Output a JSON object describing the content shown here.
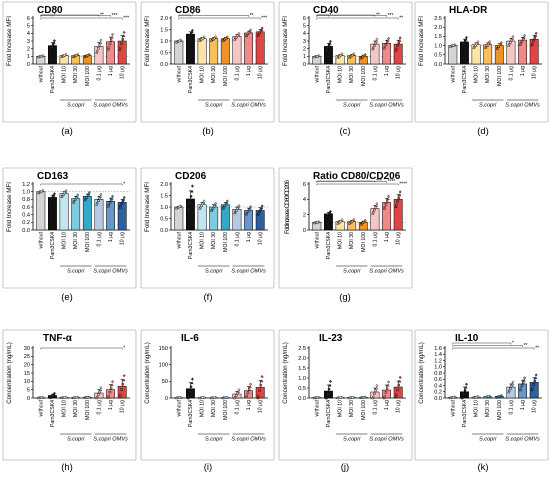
{
  "colors": {
    "without": "#d4d4d4",
    "pam": "#111111",
    "moi10": "#fce3a6",
    "moi30": "#f8bf5a",
    "moi100": "#f19227",
    "omv01": "#f8c5c5",
    "omv1": "#ef8a8a",
    "omv10": "#e04545",
    "moi10_f": "#c2e6ef",
    "moi30_f": "#7ccbe0",
    "moi100_f": "#36a6c9",
    "omv01_f": "#b6cbe3",
    "omv1_f": "#6a97c9",
    "omv10_f": "#2f5f9f",
    "cyt_moi10": "#e8f3f6",
    "cyt_moi30": "#cfe7ef",
    "cyt_moi100": "#a9d6e5"
  },
  "conditions": [
    "without",
    "Pam3CSK4",
    "MOI 10",
    "MOI 30",
    "MOI 100",
    "0.1 µg",
    "1 µg",
    "10 µg"
  ],
  "group_labels": {
    "scopri": "S.copri",
    "omvs": "S.copri OMVs"
  },
  "chart_data": [
    {
      "type": "bar",
      "panel": "(a)",
      "title": "CD80",
      "ylabel": "Fold Increase MFI",
      "ylim": [
        0,
        6
      ],
      "yticks": [
        0,
        1,
        2,
        3,
        4,
        5,
        6
      ],
      "yticklabels": [
        "0",
        "1",
        "2",
        "3",
        "4",
        "5",
        "6"
      ],
      "palette": "mfi",
      "refline": 1,
      "values": [
        1.0,
        2.4,
        1.1,
        1.1,
        1.1,
        2.3,
        2.9,
        3.0
      ],
      "errors": [
        0.05,
        0.4,
        0.1,
        0.1,
        0.1,
        0.5,
        0.6,
        0.7
      ],
      "brackets": [
        {
          "from": 0,
          "to": 1,
          "label": "*",
          "level": 0
        },
        {
          "from": 0,
          "to": 5,
          "label": "**",
          "level": 1
        },
        {
          "from": 0,
          "to": 6,
          "label": "***",
          "level": 2
        },
        {
          "from": 0,
          "to": 7,
          "label": "***",
          "level": 3
        }
      ]
    },
    {
      "type": "bar",
      "panel": "(b)",
      "title": "CD86",
      "ylabel": "Fold Increase MFI",
      "ylim": [
        0,
        2
      ],
      "yticks": [
        0,
        0.5,
        1,
        1.5,
        2
      ],
      "yticklabels": [
        "0.0",
        "0.5",
        "1.0",
        "1.5",
        "2.0"
      ],
      "palette": "mfi",
      "refline": 1,
      "values": [
        1.0,
        1.3,
        1.1,
        1.1,
        1.1,
        1.2,
        1.35,
        1.4
      ],
      "errors": [
        0.03,
        0.1,
        0.05,
        0.05,
        0.05,
        0.08,
        0.08,
        0.1
      ],
      "brackets": [
        {
          "from": 0,
          "to": 1,
          "label": "*",
          "level": 0
        },
        {
          "from": 0,
          "to": 6,
          "label": "**",
          "level": 1
        },
        {
          "from": 0,
          "to": 7,
          "label": "***",
          "level": 2
        }
      ]
    },
    {
      "type": "bar",
      "panel": "(c)",
      "title": "CD40",
      "ylabel": "Fold Increase MFI",
      "ylim": [
        0,
        6
      ],
      "yticks": [
        0,
        1,
        2,
        3,
        4,
        5,
        6
      ],
      "yticklabels": [
        "0",
        "1",
        "2",
        "3",
        "4",
        "5",
        "6"
      ],
      "palette": "mfi",
      "refline": 1,
      "values": [
        1.0,
        2.3,
        1.1,
        1.1,
        1.0,
        2.6,
        2.7,
        2.6
      ],
      "errors": [
        0.05,
        0.4,
        0.15,
        0.15,
        0.15,
        0.4,
        0.4,
        0.5
      ],
      "brackets": [
        {
          "from": 0,
          "to": 1,
          "label": "*",
          "level": 0
        },
        {
          "from": 0,
          "to": 5,
          "label": "**",
          "level": 1
        },
        {
          "from": 0,
          "to": 6,
          "label": "***",
          "level": 2
        },
        {
          "from": 0,
          "to": 7,
          "label": "**",
          "level": 3
        }
      ]
    },
    {
      "type": "bar",
      "panel": "(d)",
      "title": "HLA-DR",
      "ylabel": "Fold Increase MFI",
      "ylim": [
        0,
        2.5
      ],
      "yticks": [
        0,
        0.5,
        1,
        1.5,
        2,
        2.5
      ],
      "yticklabels": [
        "0.0",
        "0.5",
        "1.0",
        "1.5",
        "2.0",
        "2.5"
      ],
      "palette": "mfi",
      "refline": 1,
      "values": [
        1.0,
        1.2,
        1.05,
        1.05,
        1.0,
        1.25,
        1.3,
        1.35
      ],
      "errors": [
        0.03,
        0.15,
        0.1,
        0.1,
        0.1,
        0.15,
        0.15,
        0.2
      ],
      "brackets": []
    },
    {
      "type": "bar",
      "panel": "(e)",
      "title": "CD163",
      "ylabel": "Fold Increase MFI",
      "ylim": [
        0,
        1.2
      ],
      "yticks": [
        0,
        0.2,
        0.4,
        0.6,
        0.8,
        1.0,
        1.2
      ],
      "yticklabels": [
        "0.0",
        "0.2",
        "0.4",
        "0.6",
        "0.8",
        "1.0",
        "1.2"
      ],
      "palette": "blue",
      "refline": 1,
      "values": [
        1.0,
        0.85,
        0.95,
        0.82,
        0.88,
        0.8,
        0.75,
        0.72
      ],
      "errors": [
        0.02,
        0.06,
        0.05,
        0.06,
        0.06,
        0.08,
        0.08,
        0.08
      ],
      "brackets": [
        {
          "from": 0,
          "to": 7,
          "label": "*",
          "level": 0
        }
      ]
    },
    {
      "type": "bar",
      "panel": "(f)",
      "title": "CD206",
      "ylabel": "Fold Increase MFI",
      "ylim": [
        0,
        2
      ],
      "yticks": [
        0,
        0.5,
        1,
        1.5,
        2
      ],
      "yticklabels": [
        "0.0",
        "0.5",
        "1.0",
        "1.5",
        "2.0"
      ],
      "palette": "blue",
      "refline": 1,
      "values": [
        1.0,
        1.35,
        1.1,
        1.0,
        1.1,
        0.9,
        0.85,
        0.85
      ],
      "errors": [
        0.03,
        0.35,
        0.1,
        0.1,
        0.1,
        0.1,
        0.1,
        0.12
      ],
      "brackets": []
    },
    {
      "type": "bar",
      "panel": "(g)",
      "title": "Ratio CD80/CD206",
      "ylabel": "Fold increase CD80/CD206",
      "ylim": [
        0,
        6
      ],
      "yticks": [
        0,
        2,
        4,
        6
      ],
      "yticklabels": [
        "0",
        "2",
        "4",
        "6"
      ],
      "palette": "mfi",
      "refline": 1,
      "values": [
        1.0,
        2.1,
        1.1,
        1.1,
        1.0,
        2.8,
        3.6,
        4.0
      ],
      "errors": [
        0.05,
        0.2,
        0.15,
        0.15,
        0.15,
        0.4,
        0.5,
        0.6
      ],
      "brackets": [
        {
          "from": 0,
          "to": 5,
          "label": "***",
          "level": 0
        },
        {
          "from": 0,
          "to": 6,
          "label": "****",
          "level": 1
        },
        {
          "from": 0,
          "to": 7,
          "label": "****",
          "level": 2
        }
      ]
    },
    {
      "type": "bar",
      "panel": "(h)",
      "title": "TNF-α",
      "ylabel": "Concentration (ng/mL)",
      "ylim": [
        0,
        30
      ],
      "yticks": [
        0,
        5,
        10,
        15,
        20,
        25,
        30
      ],
      "yticklabels": [
        "0",
        "5",
        "10",
        "15",
        "20",
        "25",
        "30"
      ],
      "palette": "cyt",
      "values": [
        0.2,
        1.5,
        0.3,
        0.3,
        0.4,
        3.0,
        5.0,
        7.0
      ],
      "errors": [
        0.1,
        0.8,
        0.1,
        0.1,
        0.1,
        2.0,
        3.0,
        4.0
      ],
      "brackets": [
        {
          "from": 0,
          "to": 7,
          "label": "*",
          "level": 0
        }
      ]
    },
    {
      "type": "bar",
      "panel": "(i)",
      "title": "IL-6",
      "ylabel": "Concentration (ng/mL)",
      "ylim": [
        0,
        150
      ],
      "yticks": [
        0,
        50,
        100,
        150
      ],
      "yticklabels": [
        "0",
        "50",
        "100",
        "150"
      ],
      "palette": "cyt",
      "values": [
        1,
        28,
        1,
        1,
        1,
        12,
        22,
        32
      ],
      "errors": [
        0.5,
        18,
        0.5,
        0.5,
        0.5,
        8,
        12,
        20
      ],
      "brackets": []
    },
    {
      "type": "bar",
      "panel": "(j)",
      "title": "IL-23",
      "ylabel": "Concentration (ng/mL)",
      "ylim": [
        0,
        2.5
      ],
      "yticks": [
        0,
        0.5,
        1,
        1.5,
        2,
        2.5
      ],
      "yticklabels": [
        "0.0",
        "0.5",
        "1.0",
        "1.5",
        "2.0",
        "2.5"
      ],
      "palette": "cyt",
      "values": [
        0.02,
        0.35,
        0.02,
        0.02,
        0.03,
        0.3,
        0.4,
        0.55
      ],
      "errors": [
        0.01,
        0.3,
        0.01,
        0.01,
        0.01,
        0.2,
        0.25,
        0.3
      ],
      "brackets": []
    },
    {
      "type": "bar",
      "panel": "(k)",
      "title": "IL-10",
      "ylabel": "Concentration (ng/mL)",
      "ylim": [
        0,
        1.6
      ],
      "yticks": [
        0,
        0.2,
        0.4,
        0.6,
        0.8,
        1.0,
        1.2,
        1.4,
        1.6
      ],
      "yticklabels": [
        "0.0",
        "0.2",
        "0.4",
        "0.6",
        "0.8",
        "1.0",
        "1.2",
        "1.4",
        "1.6"
      ],
      "palette": "blue",
      "values": [
        0.02,
        0.2,
        0.03,
        0.04,
        0.05,
        0.35,
        0.45,
        0.5
      ],
      "errors": [
        0.01,
        0.15,
        0.01,
        0.01,
        0.02,
        0.1,
        0.12,
        0.15
      ],
      "brackets": [
        {
          "from": 0,
          "to": 5,
          "label": "*",
          "level": 0
        },
        {
          "from": 0,
          "to": 6,
          "label": "**",
          "level": 1
        },
        {
          "from": 0,
          "to": 7,
          "label": "**",
          "level": 2
        }
      ]
    }
  ]
}
